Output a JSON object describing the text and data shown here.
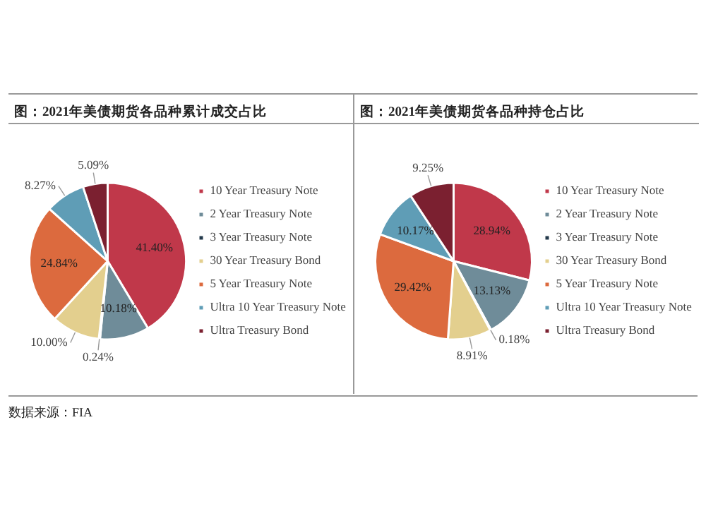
{
  "chart_data": [
    {
      "type": "pie",
      "title": "图：2021年美债期货各品种累计成交占比",
      "categories": [
        "10 Year Treasury Note",
        "2 Year Treasury Note",
        "3 Year Treasury Note",
        "30 Year Treasury Bond",
        "5 Year Treasury Note",
        "Ultra 10 Year Treasury Note",
        "Ultra Treasury Bond"
      ],
      "values": [
        41.4,
        10.18,
        0.24,
        10.0,
        24.84,
        8.27,
        5.09
      ],
      "value_labels": [
        "41.40%",
        "10.18%",
        "0.24%",
        "10.00%",
        "24.84%",
        "8.27%",
        "5.09%"
      ],
      "colors": [
        "#c0384a",
        "#6f8c99",
        "#23394a",
        "#e3cf8e",
        "#dc6a3e",
        "#5f9db6",
        "#7b2030"
      ],
      "legend": "right",
      "annotations": [
        "数据来源：FIA"
      ]
    },
    {
      "type": "pie",
      "title": "图：2021年美债期货各品种持仓占比",
      "categories": [
        "10 Year Treasury Note",
        "2 Year Treasury Note",
        "3 Year Treasury Note",
        "30 Year Treasury Bond",
        "5 Year Treasury Note",
        "Ultra 10 Year Treasury Note",
        "Ultra Treasury Bond"
      ],
      "values": [
        28.94,
        13.13,
        0.18,
        8.91,
        29.42,
        10.17,
        9.25
      ],
      "value_labels": [
        "28.94%",
        "13.13%",
        "0.18%",
        "8.91%",
        "29.42%",
        "10.17%",
        "9.25%"
      ],
      "colors": [
        "#c0384a",
        "#6f8c99",
        "#23394a",
        "#e3cf8e",
        "#dc6a3e",
        "#5f9db6",
        "#7b2030"
      ],
      "legend": "right"
    }
  ]
}
